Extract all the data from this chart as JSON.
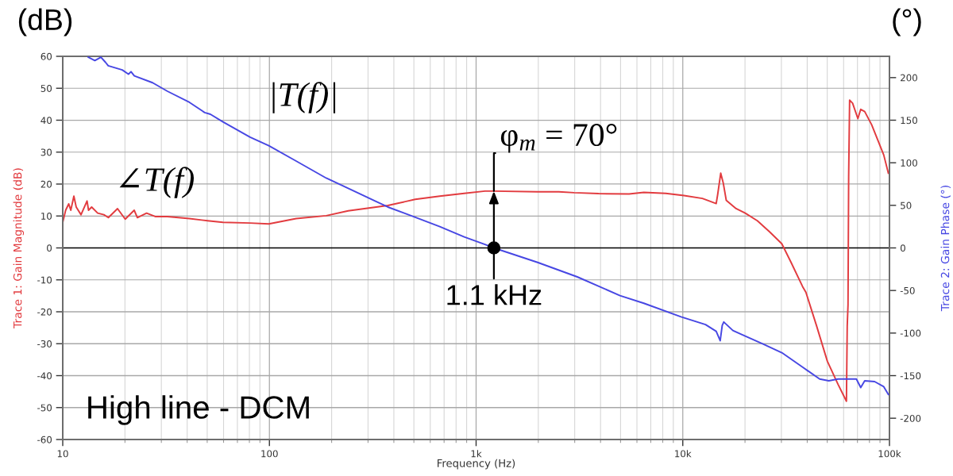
{
  "chart_data": {
    "type": "line",
    "xlabel": "Frequency (Hz)",
    "ylabel": "Trace 1: Gain Magnitude (dB)",
    "y2label": "Trace 2: Gain Phase (°)",
    "annotations": [
      "(dB)",
      "(°)",
      "|T(f)|",
      "∠T(f)",
      "High line - DCM",
      {
        "text": "1.1 kHz",
        "x": 1219,
        "y": 0
      },
      {
        "text": "φ$_{m}$ = 70°",
        "x": 1219,
        "y": 17.8
      }
    ],
    "log": "x",
    "grid": true,
    "xlim": [
      10,
      100000
    ],
    "xticks": [
      10,
      100,
      {
        "value": 1000,
        "label": "1k"
      },
      {
        "value": 10000,
        "label": "10k"
      },
      {
        "value": 100000,
        "label": "100k"
      }
    ],
    "ylim": [
      -60,
      60
    ],
    "yticks": [
      -60,
      -50,
      -40,
      -30,
      -20,
      -10,
      0,
      10,
      20,
      30,
      40,
      50,
      60
    ],
    "y2lim": [
      -225,
      225
    ],
    "y2ticks": [
      -200,
      -150,
      -100,
      -50,
      0,
      50,
      100,
      150,
      200
    ],
    "ref_lines": [
      {
        "axis": "y",
        "value": 0,
        "color": "#000000"
      }
    ],
    "series": [
      {
        "color": "#e23b3f",
        "x": [
          10,
          10.33,
          10.69,
          10.94,
          11.32,
          11.62,
          12.26,
          13.11,
          13.33,
          13.8,
          14.76,
          15.81,
          16.63,
          18.41,
          20.06,
          22.17,
          22.97,
          25.45,
          28.15,
          32.09,
          41.0,
          50.2,
          59.6,
          80.6,
          99.3,
          134.7,
          188.3,
          240.5,
          374.3,
          507.8,
          667,
          876,
          1104,
          1219,
          1984,
          2513,
          2980,
          3912,
          5499,
          6478,
          8275,
          10140,
          12440,
          14510,
          14750,
          15260,
          15690,
          16230,
          18110,
          20050,
          22950,
          26250,
          30140,
          33340,
          37980,
          39430,
          44440,
          50060,
          56370,
          61910,
          62460,
          63020,
          63470,
          64150,
          66330,
          70330,
          72610,
          75890,
          81970,
          87750,
          93830,
          98770
        ],
        "values": [
          8.0,
          11.8,
          13.8,
          11.8,
          16.2,
          12.8,
          10.4,
          14.7,
          11.8,
          12.8,
          10.9,
          10.4,
          9.5,
          12.3,
          9.0,
          11.8,
          9.5,
          10.9,
          9.8,
          9.8,
          9.2,
          8.5,
          8.0,
          7.8,
          7.5,
          9.2,
          10.1,
          11.6,
          13.3,
          15.2,
          16.2,
          17.1,
          17.8,
          17.8,
          17.6,
          17.6,
          17.3,
          17.0,
          16.9,
          17.4,
          17.1,
          16.4,
          15.5,
          13.9,
          16.7,
          23.4,
          20.4,
          14.9,
          12.3,
          10.9,
          8.5,
          5.1,
          1.3,
          -4.4,
          -12.1,
          -13.9,
          -24.5,
          -35.5,
          -42.7,
          -48.0,
          -24.5,
          -17.8,
          22.4,
          46.3,
          45.3,
          40.5,
          43.4,
          42.7,
          38.6,
          33.8,
          29.1,
          23.4
        ]
      },
      {
        "color": "#4747e3",
        "axis": "y2",
        "x": [
          13.3,
          14.3,
          15.3,
          16.1,
          16.6,
          19.4,
          20.8,
          21.4,
          22.2,
          27.2,
          32.1,
          41.0,
          48.6,
          51.8,
          59.6,
          80.6,
          99.3,
          134.7,
          188.3,
          240.5,
          374.3,
          507.8,
          667,
          876,
          1104,
          1219,
          1984,
          3087,
          4968,
          6478,
          9808,
          12880,
          14510,
          15170,
          15520,
          15790,
          17480,
          19370,
          24570,
          30140,
          37980,
          45950,
          50870,
          56370,
          69170,
          72610,
          75890,
          84750,
          93830,
          98770
        ],
        "values": [
          224,
          220,
          224,
          218,
          214,
          209,
          204,
          207,
          202,
          194,
          184,
          171,
          159,
          157,
          148,
          130,
          120,
          102,
          82,
          70,
          48,
          36,
          25,
          13,
          4,
          0,
          -17,
          -34,
          -56,
          -65,
          -81,
          -90,
          -98,
          -109,
          -91,
          -87,
          -97,
          -102,
          -113,
          -123,
          -140,
          -154,
          -156,
          -154,
          -154,
          -164,
          -156,
          -157,
          -163,
          -172
        ]
      },
      {
        "type": "scatter",
        "color": "#000000",
        "axis": "y2",
        "marker": "circle",
        "x": [
          1219
        ],
        "values": [
          0
        ]
      }
    ]
  }
}
